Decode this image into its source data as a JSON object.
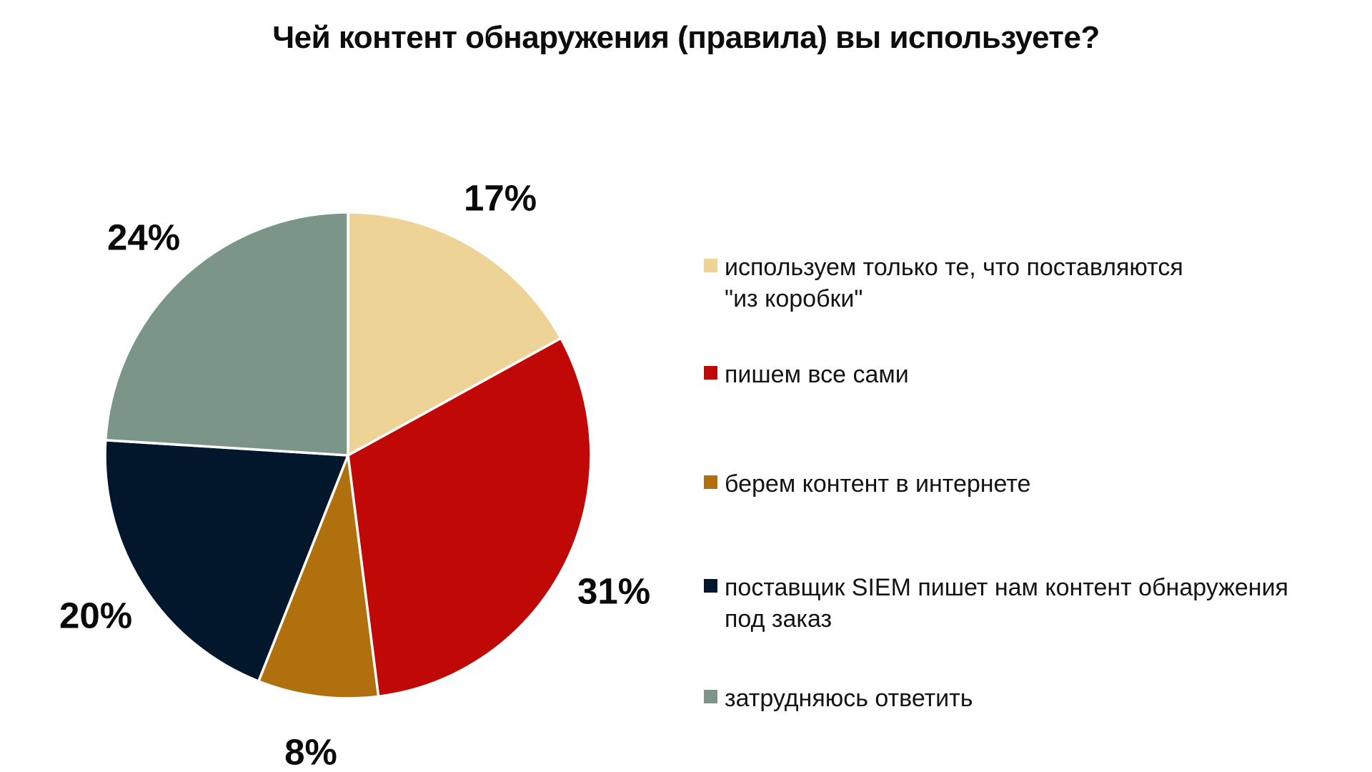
{
  "title": "Чей контент обнаружения (правила) вы используете?",
  "colors": {
    "background": "#FFFFFF",
    "text": "#0D0D0D"
  },
  "chart_data": {
    "type": "pie",
    "title": "Чей контент обнаружения (правила) вы используете?",
    "direction": "clockwise",
    "start_angle_deg": 0,
    "legend_position": "right",
    "value_label_format": "percent",
    "slices": [
      {
        "label": "используем только те, что поставляются \"из коробки\"",
        "legend_lines": [
          "используем только те, что поставляются",
          "\"из коробки\""
        ],
        "value": 17,
        "value_label": "17%",
        "color": "#EDD396"
      },
      {
        "label": "пишем все сами",
        "legend_lines": [
          "пишем все сами"
        ],
        "value": 31,
        "value_label": "31%",
        "color": "#C00807"
      },
      {
        "label": "берем контент в интернете",
        "legend_lines": [
          "берем контент в интернете"
        ],
        "value": 8,
        "value_label": "8%",
        "color": "#B1700E"
      },
      {
        "label": "поставщик SIEM пишет нам контент обнаружения под заказ",
        "legend_lines": [
          "поставщик SIEM пишет нам контент обнаружения",
          "под заказ"
        ],
        "value": 20,
        "value_label": "20%",
        "color": "#02172B"
      },
      {
        "label": "затрудняюсь ответить",
        "legend_lines": [
          "затрудняюсь ответить"
        ],
        "value": 24,
        "value_label": "24%",
        "color": "#7C9589"
      }
    ]
  }
}
